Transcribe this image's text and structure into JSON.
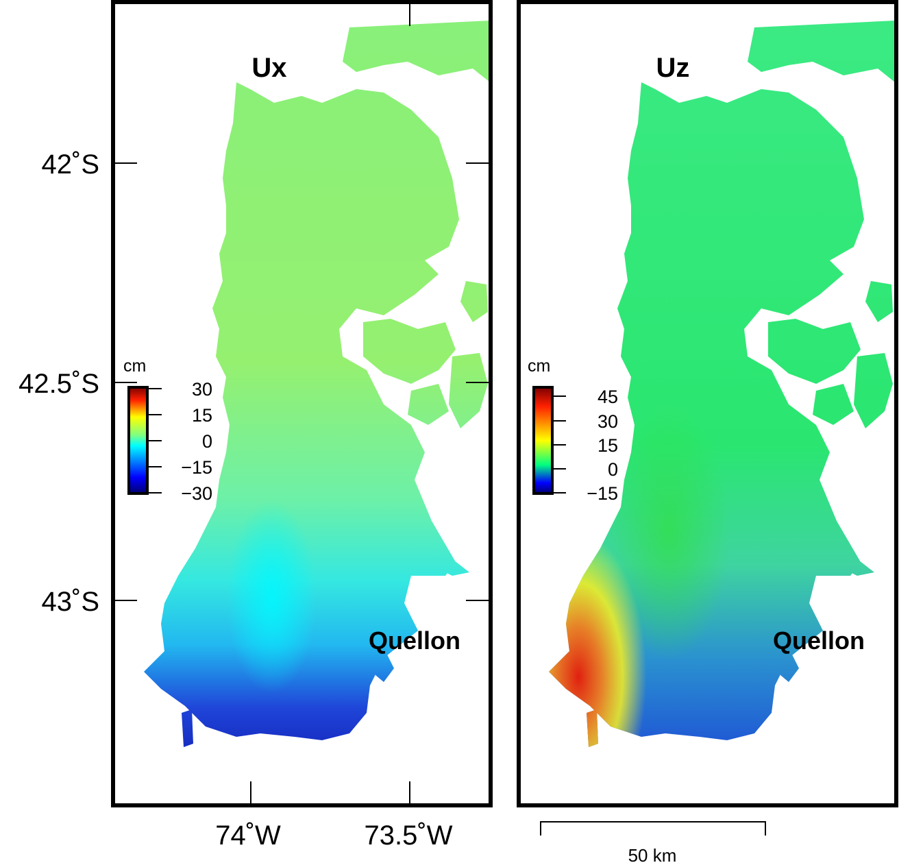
{
  "map": {
    "lat_labels": [
      "42˚S",
      "42.5˚S",
      "43˚S"
    ],
    "lon_labels": [
      "74˚W",
      "73.5˚W"
    ],
    "scale_bar": {
      "label": "50 km",
      "distance_km": 50
    },
    "panels": [
      {
        "title": "Ux",
        "place_label": "Quellon",
        "colorbar": {
          "unit": "cm",
          "ticks": [
            "30",
            "15",
            "0",
            "−15",
            "−30"
          ],
          "range": [
            -30,
            30
          ],
          "colormap": [
            "#00006e",
            "#0000ff",
            "#00ffff",
            "#ffff00",
            "#ff0000",
            "#7a0000"
          ]
        }
      },
      {
        "title": "Uz",
        "place_label": "Quellon",
        "colorbar": {
          "unit": "cm",
          "ticks": [
            "45",
            "30",
            "15",
            "0",
            "−15"
          ],
          "range": [
            -20,
            52
          ],
          "colormap": [
            "#00006e",
            "#0000ff",
            "#00ff80",
            "#ffff00",
            "#ff0000",
            "#7a0000"
          ]
        }
      }
    ]
  }
}
